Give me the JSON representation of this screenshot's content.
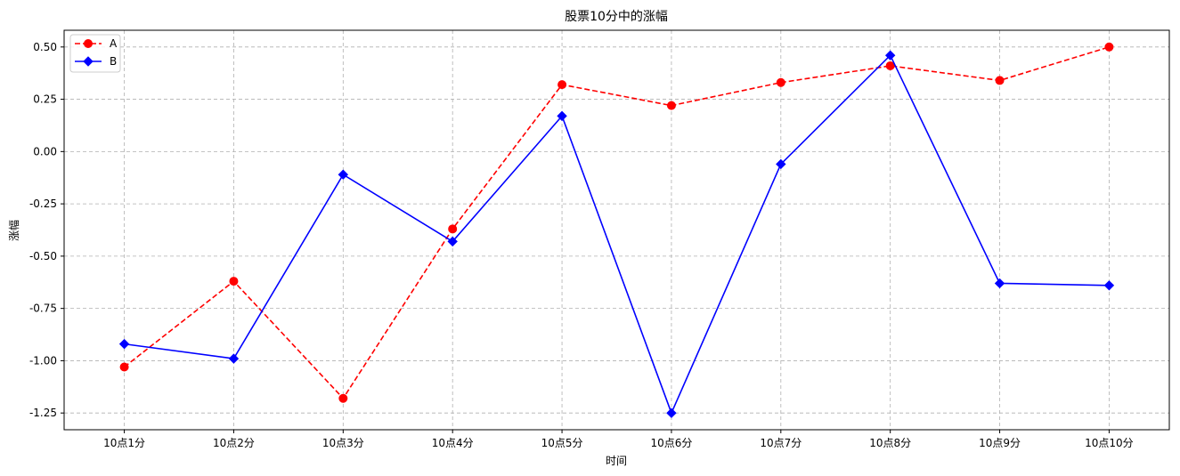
{
  "chart_data": {
    "type": "line",
    "title": "股票10分中的涨幅",
    "xlabel": "时间",
    "ylabel": "涨幅",
    "categories": [
      "10点1分",
      "10点2分",
      "10点3分",
      "10点4分",
      "10点5分",
      "10点6分",
      "10点7分",
      "10点8分",
      "10点9分",
      "10点10分"
    ],
    "ylim": [
      -1.33,
      0.58
    ],
    "yticks": [
      -1.25,
      -1.0,
      -0.75,
      -0.5,
      -0.25,
      0.0,
      0.25,
      0.5
    ],
    "ytick_labels": [
      "-1.25",
      "-1.00",
      "-0.75",
      "-0.50",
      "-0.25",
      "0.00",
      "0.25",
      "0.50"
    ],
    "grid": true,
    "legend_position": "top-left",
    "series": [
      {
        "name": "A",
        "color": "#ff0000",
        "line_style": "dashed",
        "marker": "circle",
        "values": [
          -1.03,
          -0.62,
          -1.18,
          -0.37,
          0.32,
          0.22,
          0.33,
          0.41,
          0.34,
          0.5
        ]
      },
      {
        "name": "B",
        "color": "#0000ff",
        "line_style": "solid",
        "marker": "diamond",
        "values": [
          -0.92,
          -0.99,
          -0.11,
          -0.43,
          0.17,
          -1.25,
          -0.06,
          0.46,
          -0.63,
          -0.64
        ]
      }
    ]
  }
}
